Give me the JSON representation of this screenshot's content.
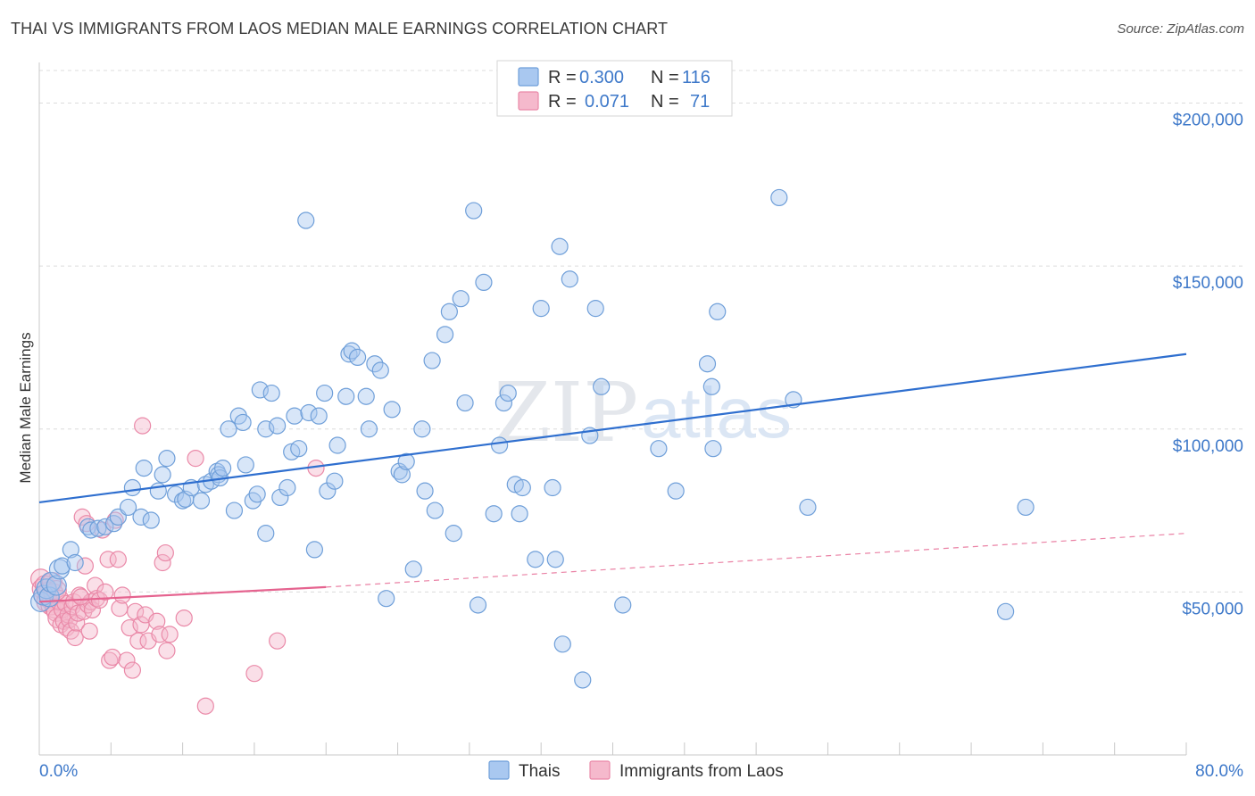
{
  "header": {
    "title": "THAI VS IMMIGRANTS FROM LAOS MEDIAN MALE EARNINGS CORRELATION CHART",
    "source": "Source: ZipAtlas.com"
  },
  "watermark": {
    "zip": "ZIP",
    "atlas": "atlas"
  },
  "legend": {
    "rows": [
      {
        "r_label": "R = ",
        "r_value": "0.300",
        "n_label": "N = ",
        "n_value": "116"
      },
      {
        "r_label": "R = ",
        "r_value": "0.071",
        "n_label": "N = ",
        "n_value": "71"
      }
    ]
  },
  "colors": {
    "thai_fill": "#a9c8f0",
    "thai_stroke": "#6f9fd9",
    "thai_line": "#2f6fcf",
    "laos_fill": "#f5b9cc",
    "laos_stroke": "#ea89a8",
    "laos_line": "#e5638f",
    "tick_text": "#3d78c9",
    "grid": "#dcdcdc"
  },
  "chart_data": {
    "type": "scatter",
    "title": "THAI VS IMMIGRANTS FROM LAOS MEDIAN MALE EARNINGS CORRELATION CHART",
    "ylabel": "Median Male Earnings",
    "xlabel": "",
    "xlim": [
      0,
      80
    ],
    "ylim": [
      0,
      210000
    ],
    "x_tick_labels": [
      {
        "value": 0,
        "label": "0.0%"
      },
      {
        "value": 80,
        "label": "80.0%"
      }
    ],
    "y_tick_labels": [
      {
        "value": 50000,
        "label": "$50,000"
      },
      {
        "value": 100000,
        "label": "$100,000"
      },
      {
        "value": 150000,
        "label": "$150,000"
      },
      {
        "value": 200000,
        "label": "$200,000"
      }
    ],
    "grid": true,
    "legend_position": "top-center",
    "series": [
      {
        "name": "Thais",
        "R": 0.3,
        "N": 116,
        "trend": {
          "x": [
            0,
            80
          ],
          "y": [
            77500,
            123000
          ]
        },
        "points": [
          [
            0.1,
            47000
          ],
          [
            0.3,
            49000
          ],
          [
            0.5,
            51000
          ],
          [
            0.7,
            48500
          ],
          [
            0.8,
            53000
          ],
          [
            1.2,
            52000
          ],
          [
            1.4,
            57000
          ],
          [
            1.6,
            58000
          ],
          [
            2.2,
            63000
          ],
          [
            2.5,
            59000
          ],
          [
            3.4,
            70000
          ],
          [
            3.6,
            69000
          ],
          [
            4.1,
            69500
          ],
          [
            4.6,
            70000
          ],
          [
            5.2,
            71000
          ],
          [
            5.5,
            73000
          ],
          [
            6.2,
            76000
          ],
          [
            6.5,
            82000
          ],
          [
            7.1,
            73000
          ],
          [
            7.3,
            88000
          ],
          [
            7.8,
            72000
          ],
          [
            8.3,
            81000
          ],
          [
            8.6,
            86000
          ],
          [
            8.9,
            91000
          ],
          [
            9.5,
            80000
          ],
          [
            10.0,
            78000
          ],
          [
            10.2,
            78500
          ],
          [
            10.6,
            82000
          ],
          [
            11.3,
            78000
          ],
          [
            11.6,
            83000
          ],
          [
            12.0,
            84000
          ],
          [
            12.4,
            87000
          ],
          [
            12.5,
            86000
          ],
          [
            12.6,
            85000
          ],
          [
            12.8,
            88000
          ],
          [
            13.2,
            100000
          ],
          [
            13.6,
            75000
          ],
          [
            13.9,
            104000
          ],
          [
            14.2,
            102000
          ],
          [
            14.4,
            89000
          ],
          [
            14.9,
            78000
          ],
          [
            15.2,
            80000
          ],
          [
            15.4,
            112000
          ],
          [
            15.8,
            68000
          ],
          [
            15.8,
            100000
          ],
          [
            16.2,
            111000
          ],
          [
            16.6,
            101000
          ],
          [
            16.8,
            79000
          ],
          [
            17.3,
            82000
          ],
          [
            17.6,
            93000
          ],
          [
            17.8,
            104000
          ],
          [
            18.1,
            94000
          ],
          [
            18.6,
            164000
          ],
          [
            18.8,
            105000
          ],
          [
            19.2,
            63000
          ],
          [
            19.5,
            104000
          ],
          [
            19.9,
            111000
          ],
          [
            20.1,
            81000
          ],
          [
            20.6,
            84000
          ],
          [
            20.8,
            95000
          ],
          [
            21.4,
            110000
          ],
          [
            21.6,
            123000
          ],
          [
            21.8,
            124000
          ],
          [
            22.2,
            122000
          ],
          [
            22.8,
            110000
          ],
          [
            23.0,
            100000
          ],
          [
            23.4,
            120000
          ],
          [
            23.8,
            118000
          ],
          [
            24.2,
            48000
          ],
          [
            24.6,
            106000
          ],
          [
            25.1,
            87000
          ],
          [
            25.3,
            86000
          ],
          [
            25.6,
            90000
          ],
          [
            26.1,
            57000
          ],
          [
            26.7,
            100000
          ],
          [
            26.9,
            81000
          ],
          [
            27.4,
            121000
          ],
          [
            27.6,
            75000
          ],
          [
            28.3,
            129000
          ],
          [
            28.6,
            136000
          ],
          [
            28.9,
            68000
          ],
          [
            29.4,
            140000
          ],
          [
            29.7,
            108000
          ],
          [
            30.3,
            167000
          ],
          [
            30.6,
            46000
          ],
          [
            31.0,
            145000
          ],
          [
            31.7,
            74000
          ],
          [
            32.1,
            95000
          ],
          [
            32.4,
            108000
          ],
          [
            32.7,
            111000
          ],
          [
            33.2,
            83000
          ],
          [
            33.5,
            74000
          ],
          [
            33.7,
            82000
          ],
          [
            34.6,
            60000
          ],
          [
            35.0,
            137000
          ],
          [
            35.8,
            82000
          ],
          [
            36.0,
            60000
          ],
          [
            36.3,
            156000
          ],
          [
            36.5,
            34000
          ],
          [
            37.0,
            146000
          ],
          [
            37.9,
            23000
          ],
          [
            38.4,
            98000
          ],
          [
            38.8,
            137000
          ],
          [
            39.2,
            113000
          ],
          [
            40.7,
            46000
          ],
          [
            43.2,
            94000
          ],
          [
            44.4,
            81000
          ],
          [
            46.6,
            120000
          ],
          [
            46.9,
            113000
          ],
          [
            47.0,
            94000
          ],
          [
            47.3,
            136000
          ],
          [
            51.6,
            171000
          ],
          [
            52.6,
            109000
          ],
          [
            53.6,
            76000
          ],
          [
            67.4,
            44000
          ],
          [
            68.8,
            76000
          ]
        ]
      },
      {
        "name": "Immigrants from Laos",
        "R": 0.071,
        "N": 71,
        "trend": {
          "x": [
            0,
            20
          ],
          "y": [
            47000,
            51500
          ]
        },
        "trend_extension": {
          "x": [
            20,
            80
          ],
          "y": [
            51500,
            68000
          ]
        },
        "points": [
          [
            0.1,
            54000
          ],
          [
            0.2,
            51000
          ],
          [
            0.3,
            49000
          ],
          [
            0.4,
            52000
          ],
          [
            0.5,
            47000
          ],
          [
            0.6,
            50000
          ],
          [
            0.7,
            48000
          ],
          [
            0.8,
            46000
          ],
          [
            0.9,
            53000
          ],
          [
            1.0,
            49500
          ],
          [
            1.1,
            45000
          ],
          [
            1.2,
            44000
          ],
          [
            1.3,
            42000
          ],
          [
            1.4,
            47500
          ],
          [
            1.5,
            40000
          ],
          [
            1.6,
            44500
          ],
          [
            1.7,
            41000
          ],
          [
            1.8,
            46500
          ],
          [
            1.9,
            39000
          ],
          [
            2.0,
            43000
          ],
          [
            2.1,
            41500
          ],
          [
            2.2,
            38000
          ],
          [
            2.3,
            45500
          ],
          [
            2.4,
            47000
          ],
          [
            2.5,
            36000
          ],
          [
            2.6,
            40500
          ],
          [
            2.7,
            43500
          ],
          [
            2.8,
            49000
          ],
          [
            3.0,
            73000
          ],
          [
            3.1,
            44000
          ],
          [
            3.2,
            58000
          ],
          [
            3.3,
            71000
          ],
          [
            3.4,
            46000
          ],
          [
            3.5,
            38000
          ],
          [
            3.6,
            47000
          ],
          [
            3.7,
            44500
          ],
          [
            3.9,
            52000
          ],
          [
            4.0,
            48000
          ],
          [
            4.2,
            47500
          ],
          [
            4.4,
            69000
          ],
          [
            4.6,
            50000
          ],
          [
            4.8,
            60000
          ],
          [
            4.9,
            29000
          ],
          [
            5.1,
            30000
          ],
          [
            5.3,
            72000
          ],
          [
            5.5,
            60000
          ],
          [
            5.6,
            45000
          ],
          [
            5.8,
            49000
          ],
          [
            6.1,
            29000
          ],
          [
            6.3,
            39000
          ],
          [
            6.5,
            26000
          ],
          [
            6.7,
            44000
          ],
          [
            6.9,
            35000
          ],
          [
            7.1,
            40000
          ],
          [
            7.2,
            101000
          ],
          [
            7.4,
            43000
          ],
          [
            7.6,
            35000
          ],
          [
            8.2,
            41000
          ],
          [
            8.4,
            37000
          ],
          [
            8.6,
            59000
          ],
          [
            8.8,
            62000
          ],
          [
            8.9,
            32000
          ],
          [
            9.1,
            37000
          ],
          [
            10.1,
            42000
          ],
          [
            10.9,
            91000
          ],
          [
            11.6,
            15000
          ],
          [
            15.0,
            25000
          ],
          [
            16.6,
            35000
          ],
          [
            19.3,
            88000
          ],
          [
            2.9,
            48500
          ],
          [
            1.2,
            50500
          ]
        ]
      }
    ]
  },
  "bottom_legend": {
    "items": [
      "Thais",
      "Immigrants from Laos"
    ]
  }
}
